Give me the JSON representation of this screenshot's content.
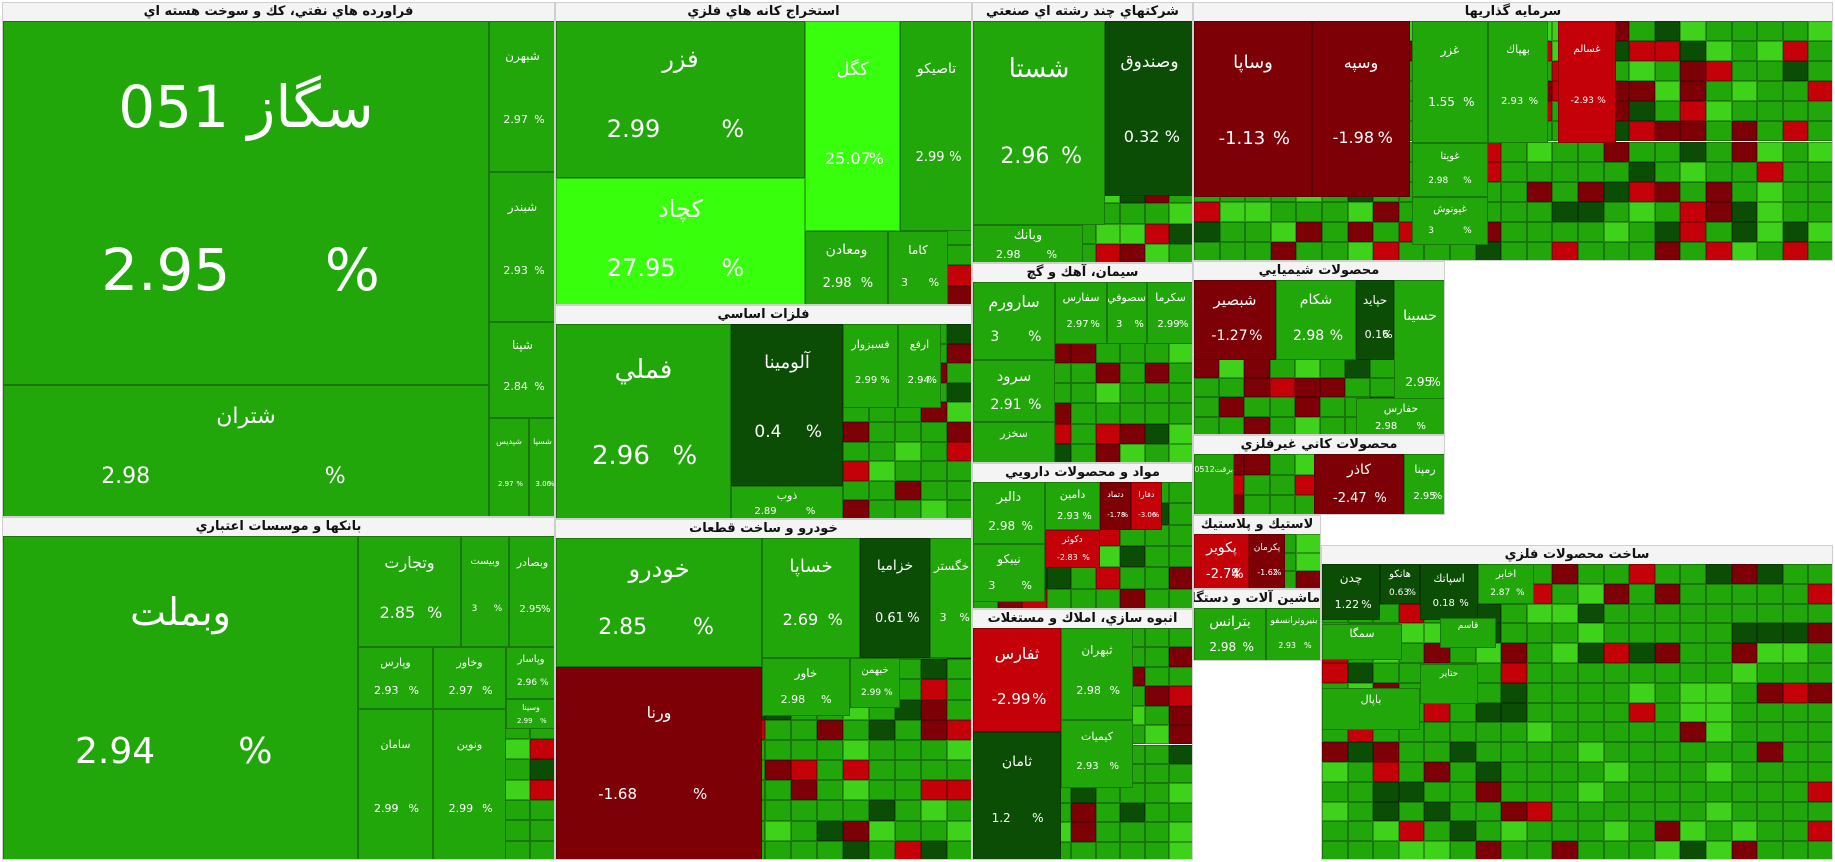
{
  "chart_data": {
    "type": "treemap",
    "colors": {
      "up": "#22a70a",
      "up_mid": "#2cbe0b",
      "up_bright": "#38ff0c",
      "up_dark": "#0b4d04",
      "down": "#c40008",
      "down_dark": "#7c0006",
      "up_pale": "#3fd21a"
    },
    "sectors": [
      {
        "name": "فراورده هاي نفتي، كك و سوخت هسته اي",
        "tiles": [
          {
            "symbol": "سگاز 051",
            "change": "2.95",
            "percent": "%"
          },
          {
            "symbol": "شتران",
            "change": "2.98",
            "percent": "%"
          },
          {
            "symbol": "شبهرن",
            "change": "2.97",
            "percent": "%"
          },
          {
            "symbol": "شبندر",
            "change": "2.93",
            "percent": "%"
          },
          {
            "symbol": "شپنا",
            "change": "2.84",
            "percent": "%"
          },
          {
            "symbol": "شپديس",
            "change": "2.97",
            "percent": "%"
          },
          {
            "symbol": "شسپا",
            "change": "3.00",
            "percent": "%"
          }
        ]
      },
      {
        "name": "بانكها و موسسات اعتباري",
        "tiles": [
          {
            "symbol": "وبملت",
            "change": "2.94",
            "percent": "%"
          },
          {
            "symbol": "وتجارت",
            "change": "2.85",
            "percent": "%"
          },
          {
            "symbol": "وبيست",
            "change": "3",
            "percent": "%"
          },
          {
            "symbol": "وبصادر",
            "change": "2.95",
            "percent": "%"
          },
          {
            "symbol": "وپارس",
            "change": "2.93",
            "percent": "%"
          },
          {
            "symbol": "وخاور",
            "change": "2.97",
            "percent": "%"
          },
          {
            "symbol": "وپاسار",
            "change": "2.96",
            "percent": "%"
          },
          {
            "symbol": "وسينا",
            "change": "2.99",
            "percent": "%"
          },
          {
            "symbol": "سامان",
            "change": "2.99",
            "percent": "%"
          },
          {
            "symbol": "ونوين",
            "change": "2.99",
            "percent": "%"
          }
        ]
      },
      {
        "name": "استخراج كانه هاي فلزي",
        "tiles": [
          {
            "symbol": "فزر",
            "change": "2.99",
            "percent": "%"
          },
          {
            "symbol": "كچاد",
            "change": "27.95",
            "percent": "%"
          },
          {
            "symbol": "كگل",
            "change": "25.07",
            "percent": "%"
          },
          {
            "symbol": "تاصيكو",
            "change": "2.99",
            "percent": "%"
          },
          {
            "symbol": "ومعادن",
            "change": "2.98",
            "percent": "%"
          },
          {
            "symbol": "كاما",
            "change": "3",
            "percent": "%"
          }
        ]
      },
      {
        "name": "فلزات اساسي",
        "tiles": [
          {
            "symbol": "فملي",
            "change": "2.96",
            "percent": "%"
          },
          {
            "symbol": "آلومينا",
            "change": "0.4",
            "percent": "%"
          },
          {
            "symbol": "فسبزوار",
            "change": "2.99",
            "percent": "%"
          },
          {
            "symbol": "ارفع",
            "change": "2.94",
            "percent": "%"
          },
          {
            "symbol": "ذوب",
            "change": "2.89",
            "percent": "%"
          }
        ]
      },
      {
        "name": "خودرو و ساخت قطعات",
        "tiles": [
          {
            "symbol": "خودرو",
            "change": "2.85",
            "percent": "%"
          },
          {
            "symbol": "خساپا",
            "change": "2.69",
            "percent": "%"
          },
          {
            "symbol": "خزاميا",
            "change": "0.61",
            "percent": "%"
          },
          {
            "symbol": "خگستر",
            "change": "3",
            "percent": "%"
          },
          {
            "symbol": "ورنا",
            "change": "-1.68",
            "percent": "%"
          },
          {
            "symbol": "خاور",
            "change": "2.98",
            "percent": "%"
          },
          {
            "symbol": "خبهمن",
            "change": "2.99",
            "percent": "%"
          }
        ]
      },
      {
        "name": "شركتهاي چند رشته اي صنعتي",
        "tiles": [
          {
            "symbol": "شستا",
            "change": "2.96",
            "percent": "%"
          },
          {
            "symbol": "وصندوق",
            "change": "0.32",
            "percent": "%"
          },
          {
            "symbol": "وبانك",
            "change": "2.98",
            "percent": "%"
          }
        ]
      },
      {
        "name": "سيمان، آهك و گچ",
        "tiles": [
          {
            "symbol": "سارورم",
            "change": "3",
            "percent": "%"
          },
          {
            "symbol": "سفارس",
            "change": "2.97",
            "percent": "%"
          },
          {
            "symbol": "سصوفي",
            "change": "3",
            "percent": "%"
          },
          {
            "symbol": "سكرما",
            "change": "2.99",
            "percent": "%"
          },
          {
            "symbol": "سرود",
            "change": "2.91",
            "percent": "%"
          },
          {
            "symbol": "سخزر",
            "change": "",
            "percent": ""
          }
        ]
      },
      {
        "name": "مواد و محصولات دارويي",
        "tiles": [
          {
            "symbol": "دالبر",
            "change": "2.98",
            "percent": "%"
          },
          {
            "symbol": "دامين",
            "change": "2.93",
            "percent": "%"
          },
          {
            "symbol": "دتماد",
            "change": "-1.78",
            "percent": "%"
          },
          {
            "symbol": "دفارا",
            "change": "-3.06",
            "percent": "%"
          },
          {
            "symbol": "نيبكو",
            "change": "3",
            "percent": "%"
          },
          {
            "symbol": "دكوثر",
            "change": "-2.83",
            "percent": "%"
          }
        ]
      },
      {
        "name": "انبوه سازي، املاك و مستغلات",
        "tiles": [
          {
            "symbol": "ثفارس",
            "change": "-2.99",
            "percent": "%"
          },
          {
            "symbol": "ثبهران",
            "change": "2.98",
            "percent": "%"
          },
          {
            "symbol": "ثامان",
            "change": "1.2",
            "percent": "%"
          },
          {
            "symbol": "كيميات",
            "change": "2.93",
            "percent": "%"
          }
        ]
      },
      {
        "name": "سرمايه گذاريها",
        "tiles": [
          {
            "symbol": "وساپا",
            "change": "-1.13",
            "percent": "%"
          },
          {
            "symbol": "وسپه",
            "change": "-1.98",
            "percent": "%"
          },
          {
            "symbol": "غزر",
            "change": "1.55",
            "percent": "%"
          },
          {
            "symbol": "بهپاك",
            "change": "2.93",
            "percent": "%"
          },
          {
            "symbol": "غسالم",
            "change": "-2.93",
            "percent": "%"
          },
          {
            "symbol": "غويتا",
            "change": "2.98",
            "percent": "%"
          },
          {
            "symbol": "غپونوش",
            "change": "3",
            "percent": "%"
          }
        ]
      },
      {
        "name": "محصولات شيميايي",
        "tiles": [
          {
            "symbol": "شبصير",
            "change": "-1.27",
            "percent": "%"
          },
          {
            "symbol": "شكام",
            "change": "2.98",
            "percent": "%"
          },
          {
            "symbol": "حسينا",
            "change": "2.95",
            "percent": "%"
          },
          {
            "symbol": "حپايد",
            "change": "0.16",
            "percent": "%"
          },
          {
            "symbol": "حفارس",
            "change": "2.98",
            "percent": "%"
          }
        ]
      },
      {
        "name": "محصولات كاني غيرفلزي",
        "tiles": [
          {
            "symbol": "كاذر",
            "change": "-2.47",
            "percent": "%"
          },
          {
            "symbol": "رمپنا",
            "change": "2.95",
            "percent": "%"
          },
          {
            "symbol": "برقت0512",
            "change": "",
            "percent": ""
          }
        ]
      },
      {
        "name": "لاستيك و پلاستيك",
        "tiles": [
          {
            "symbol": "پكوير",
            "change": "-2.74",
            "percent": "%"
          },
          {
            "symbol": "پكرمان",
            "change": "-1.62",
            "percent": "%"
          }
        ]
      },
      {
        "name": "ماشين آلات و دستگاههاي برقي",
        "tiles": [
          {
            "symbol": "بترانس",
            "change": "2.98",
            "percent": "%"
          },
          {
            "symbol": "بنيروترانسفو",
            "change": "2.93",
            "percent": "%"
          }
        ]
      },
      {
        "name": "ساخت محصولات فلزي",
        "tiles": [
          {
            "symbol": "چدن",
            "change": "1.22",
            "percent": "%"
          },
          {
            "symbol": "هانكو",
            "change": "0.63",
            "percent": "%"
          },
          {
            "symbol": "سمگا",
            "change": "",
            "percent": ""
          },
          {
            "symbol": "اسپاتك",
            "change": "0.18",
            "percent": "%"
          },
          {
            "symbol": "اخابر",
            "change": "2.87",
            "percent": "%"
          },
          {
            "symbol": "قاسم",
            "change": "",
            "percent": ""
          },
          {
            "symbol": "حتاير",
            "change": "",
            "percent": ""
          },
          {
            "symbol": "باپال",
            "change": "",
            "percent": ""
          }
        ]
      }
    ]
  }
}
